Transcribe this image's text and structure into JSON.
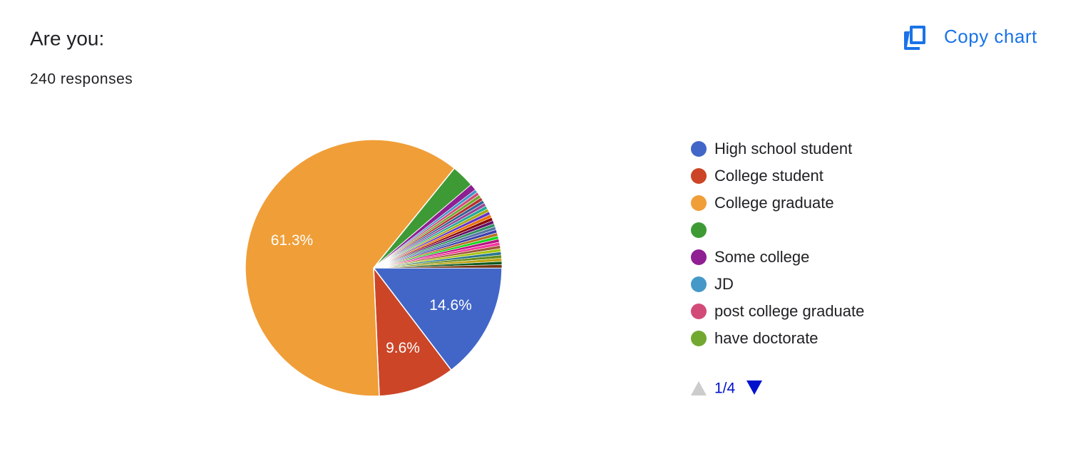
{
  "chart_data": {
    "type": "pie",
    "title": "Are you:",
    "subtitle": "240 responses",
    "copy_button": "Copy chart",
    "legend_page": "1/4",
    "categories": [
      "High school student",
      "College student",
      "College graduate",
      null,
      "Some college",
      "JD",
      "post college graduate",
      "have doctorate",
      null,
      null,
      null,
      null,
      null,
      null,
      null,
      null,
      null,
      null,
      null,
      null,
      null,
      null,
      null,
      null,
      null,
      null,
      null,
      null,
      null,
      null,
      null
    ],
    "values": [
      14.6,
      9.6,
      61.3,
      2.9,
      0.8,
      0.4,
      0.4,
      0.4,
      0.4,
      0.4,
      0.4,
      0.4,
      0.4,
      0.4,
      0.4,
      0.4,
      0.4,
      0.4,
      0.4,
      0.4,
      0.4,
      0.4,
      0.4,
      0.4,
      0.4,
      0.4,
      0.4,
      0.4,
      0.4,
      0.4,
      0.4
    ],
    "value_labels": [
      "14.6%",
      "9.6%",
      "61.3%",
      null,
      null,
      null,
      null,
      null,
      null,
      null,
      null,
      null,
      null,
      null,
      null,
      null,
      null,
      null,
      null,
      null,
      null,
      null,
      null,
      null,
      null,
      null,
      null,
      null,
      null,
      null,
      null
    ],
    "colors": [
      "#4266c8",
      "#cc4527",
      "#f09e38",
      "#3e9a35",
      "#8f1f92",
      "#4599c8",
      "#d24b77",
      "#72a830",
      "#b82e2e",
      "#316395",
      "#994499",
      "#22aa99",
      "#aaaa11",
      "#6633cc",
      "#e67300",
      "#8b0707",
      "#651067",
      "#329262",
      "#5574a6",
      "#3b3eac",
      "#b77322",
      "#16d620",
      "#b91383",
      "#f4359e",
      "#9c5935",
      "#a9c413",
      "#2a778d",
      "#668d1c",
      "#bea413",
      "#0c5922",
      "#743411"
    ]
  }
}
